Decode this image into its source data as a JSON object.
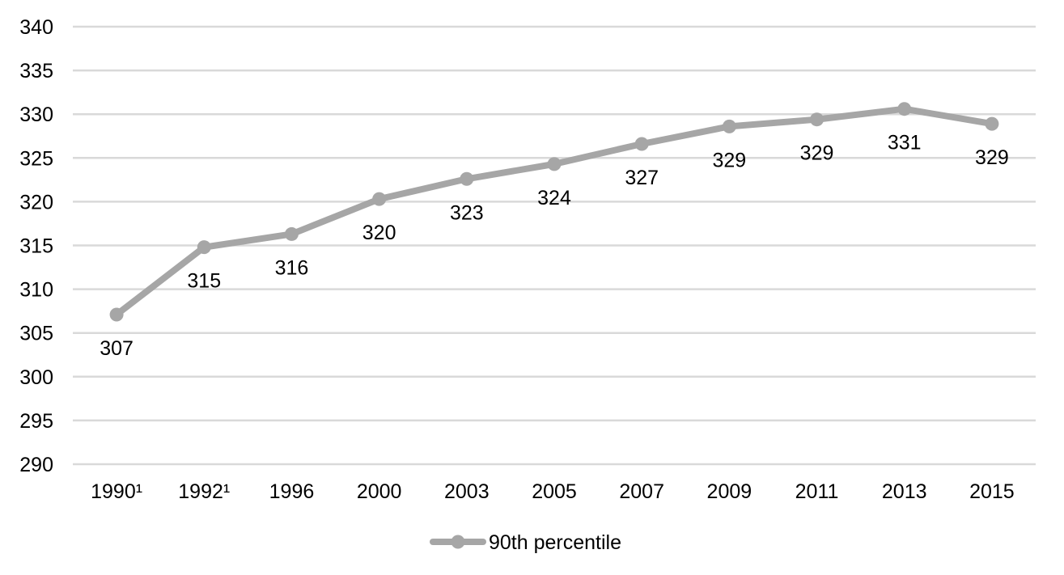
{
  "chart_data": {
    "type": "line",
    "categories": [
      "1990¹",
      "1992¹",
      "1996",
      "2000",
      "2003",
      "2005",
      "2007",
      "2009",
      "2011",
      "2013",
      "2015"
    ],
    "series": [
      {
        "name": "90th percentile",
        "values": [
          307.1,
          314.8,
          316.3,
          320.3,
          322.6,
          324.3,
          326.6,
          328.6,
          329.4,
          330.6,
          328.9
        ],
        "labels": [
          "307",
          "315",
          "316",
          "320",
          "323",
          "324",
          "327",
          "329",
          "329",
          "331",
          "329"
        ],
        "color": "#a6a6a6"
      }
    ],
    "y_ticks": [
      "290",
      "295",
      "300",
      "305",
      "310",
      "315",
      "320",
      "325",
      "330",
      "335",
      "340"
    ],
    "ylim": [
      290,
      340
    ],
    "grid": true,
    "gridline_color": "#d9d9d9",
    "legend_position": "bottom",
    "title": "",
    "xlabel": "",
    "ylabel": ""
  }
}
